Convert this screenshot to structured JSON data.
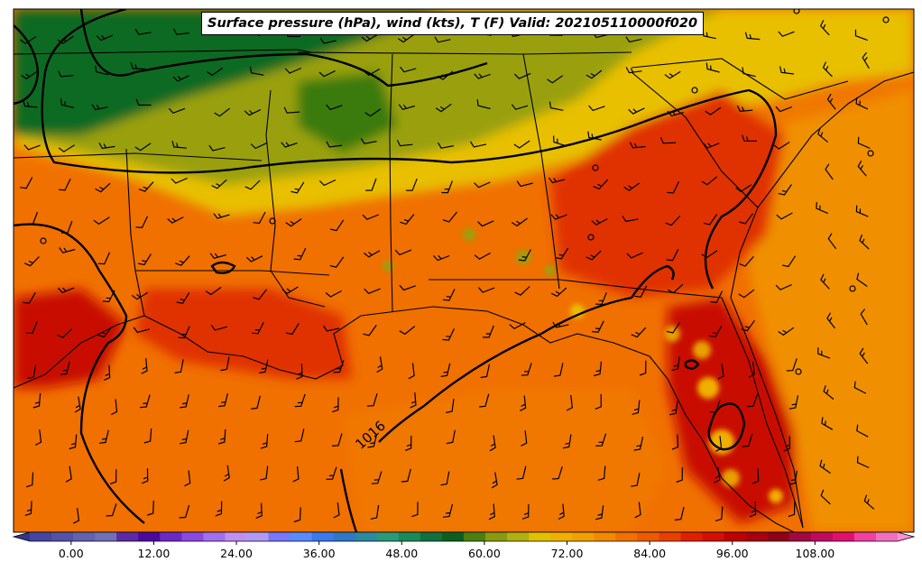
{
  "title": "Surface pressure (hPa), wind (kts), T (F) Valid: 202105110000f020",
  "contour_label": "1016",
  "colorbar": {
    "min": -6,
    "max": 120,
    "step": 3,
    "tick_values": [
      0,
      24,
      48,
      72,
      96
    ],
    "tick_labels": [
      "0.00",
      "12.00",
      "24.00",
      "36.00",
      "48.00",
      "60.00",
      "72.00",
      "84.00",
      "96.00",
      "108.00"
    ],
    "tick_label_values": [
      0,
      12,
      24,
      36,
      48,
      60,
      72,
      84,
      96,
      108
    ],
    "colors": [
      "#34348c",
      "#4545a2",
      "#5252a8",
      "#6262b0",
      "#7070b8",
      "#5a2aa8",
      "#4a0aa0",
      "#6a2ac8",
      "#8a4ae0",
      "#a070f0",
      "#c090f0",
      "#b09af8",
      "#7878ff",
      "#5a8aff",
      "#3a7aee",
      "#2f78c8",
      "#2a8aa2",
      "#2a9a7a",
      "#1a8a5a",
      "#107040",
      "#0a6020",
      "#4a8010",
      "#8a9a10",
      "#b0b010",
      "#e0c000",
      "#f0b000",
      "#f0a000",
      "#f08a00",
      "#f07000",
      "#ec5a00",
      "#e84000",
      "#e02000",
      "#d41000",
      "#c00000",
      "#a80010",
      "#900018",
      "#a00a40",
      "#c00a60",
      "#e01070",
      "#f040a0",
      "#f070c0",
      "#ff90d0"
    ]
  },
  "colors": {
    "land_north": "#0a6a20",
    "land_mid": "#9aa010",
    "land_yellow": "#e8c000",
    "warm": "#f07800",
    "hot": "#e03000",
    "hotter": "#c81000",
    "gulf": "#f07000",
    "ocean": "#f09000"
  }
}
